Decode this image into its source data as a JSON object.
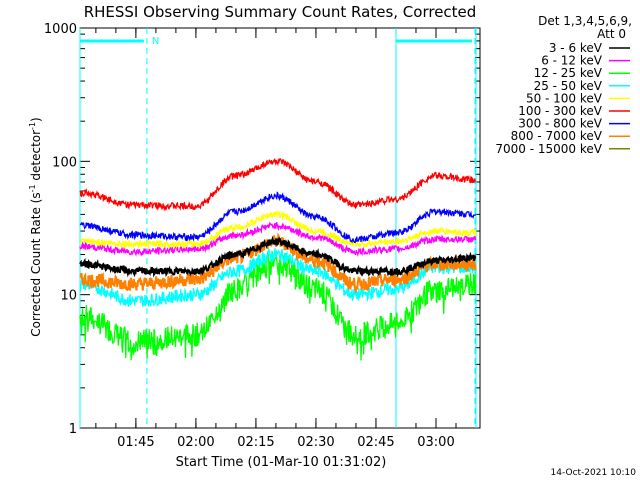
{
  "chart_data": {
    "type": "line",
    "title": "RHESSI Observing Summary Count Rates, Corrected",
    "xlabel": "Start Time (01-Mar-10 01:31:02)",
    "ylabel_main": "Corrected Count Rate (s",
    "ylabel_sup1": "-1",
    "ylabel_mid": " detector",
    "ylabel_sup2": "-1",
    "ylabel_end": ")",
    "yscale": "log",
    "ylim": [
      1,
      1000
    ],
    "xlim": [
      "01:31:02",
      "03:11:00"
    ],
    "y_ticks": [
      "1",
      "10",
      "100",
      "1000"
    ],
    "x_ticks": [
      "01:45",
      "02:00",
      "02:15",
      "02:30",
      "02:45",
      "03:00"
    ],
    "legend_header": [
      "Det 1,3,4,5,6,9,",
      "Att 0"
    ],
    "legend_position": "right",
    "series": [
      {
        "name": "3 - 6 keV",
        "color": "#000000",
        "points": [
          [
            "01:31",
            17
          ],
          [
            "01:45",
            15
          ],
          [
            "02:00",
            15
          ],
          [
            "02:10",
            20
          ],
          [
            "02:20",
            25
          ],
          [
            "02:30",
            20
          ],
          [
            "02:40",
            15
          ],
          [
            "02:50",
            15
          ],
          [
            "03:00",
            18
          ],
          [
            "03:10",
            19
          ]
        ]
      },
      {
        "name": "6 - 12 keV",
        "color": "#ff00ff",
        "points": [
          [
            "01:31",
            23
          ],
          [
            "01:45",
            21
          ],
          [
            "02:00",
            22
          ],
          [
            "02:10",
            28
          ],
          [
            "02:20",
            33
          ],
          [
            "02:30",
            27
          ],
          [
            "02:40",
            21
          ],
          [
            "02:50",
            22
          ],
          [
            "03:00",
            26
          ],
          [
            "03:10",
            26
          ]
        ]
      },
      {
        "name": "12 - 25 keV",
        "color": "#00ff00",
        "points": [
          [
            "01:31",
            7
          ],
          [
            "01:45",
            4.5
          ],
          [
            "02:00",
            5
          ],
          [
            "02:10",
            11
          ],
          [
            "02:20",
            18
          ],
          [
            "02:30",
            11
          ],
          [
            "02:40",
            5
          ],
          [
            "02:50",
            6
          ],
          [
            "03:00",
            11
          ],
          [
            "03:10",
            12
          ]
        ]
      },
      {
        "name": "25 - 50 keV",
        "color": "#00ffff",
        "points": [
          [
            "01:31",
            12
          ],
          [
            "01:45",
            9
          ],
          [
            "02:00",
            10
          ],
          [
            "02:10",
            15
          ],
          [
            "02:20",
            20
          ],
          [
            "02:30",
            15
          ],
          [
            "02:40",
            10
          ],
          [
            "02:50",
            11
          ],
          [
            "03:00",
            16
          ],
          [
            "03:10",
            16
          ]
        ]
      },
      {
        "name": "50 - 100 keV",
        "color": "#ffff00",
        "points": [
          [
            "01:31",
            25
          ],
          [
            "01:45",
            24
          ],
          [
            "02:00",
            24
          ],
          [
            "02:10",
            32
          ],
          [
            "02:20",
            40
          ],
          [
            "02:30",
            30
          ],
          [
            "02:40",
            24
          ],
          [
            "02:50",
            25
          ],
          [
            "03:00",
            30
          ],
          [
            "03:10",
            29
          ]
        ]
      },
      {
        "name": "100 - 300 keV",
        "color": "#ff0000",
        "points": [
          [
            "01:31",
            58
          ],
          [
            "01:45",
            47
          ],
          [
            "02:00",
            46
          ],
          [
            "02:10",
            78
          ],
          [
            "02:20",
            100
          ],
          [
            "02:30",
            70
          ],
          [
            "02:40",
            47
          ],
          [
            "02:50",
            52
          ],
          [
            "03:00",
            78
          ],
          [
            "03:10",
            72
          ]
        ]
      },
      {
        "name": "300 - 800 keV",
        "color": "#0000ff",
        "points": [
          [
            "01:31",
            33
          ],
          [
            "01:45",
            28
          ],
          [
            "02:00",
            27
          ],
          [
            "02:10",
            42
          ],
          [
            "02:20",
            55
          ],
          [
            "02:30",
            38
          ],
          [
            "02:40",
            26
          ],
          [
            "02:50",
            29
          ],
          [
            "03:00",
            42
          ],
          [
            "03:10",
            40
          ]
        ]
      },
      {
        "name": "800 - 7000 keV",
        "color": "#ff8000",
        "points": [
          [
            "01:31",
            13
          ],
          [
            "01:45",
            12
          ],
          [
            "02:00",
            13
          ],
          [
            "02:10",
            19
          ],
          [
            "02:20",
            25
          ],
          [
            "02:30",
            18
          ],
          [
            "02:40",
            12
          ],
          [
            "02:50",
            13
          ],
          [
            "03:00",
            17
          ],
          [
            "03:10",
            17
          ]
        ]
      },
      {
        "name": "7000 - 15000 keV",
        "color": "#808000",
        "points": []
      }
    ],
    "spans": {
      "solid_lines": [
        "01:31:02",
        "02:50:00",
        "03:10:00"
      ],
      "dashed_lines": [
        "01:48:00",
        "03:10:00"
      ],
      "top_bars": [
        [
          "01:31:02",
          "01:48:00"
        ],
        [
          "02:50:00",
          "03:10:00"
        ]
      ],
      "top_bar_label": "N",
      "marker_color": "#00ffff"
    }
  },
  "footer": {
    "timestamp": "14-Oct-2021 10:10"
  }
}
